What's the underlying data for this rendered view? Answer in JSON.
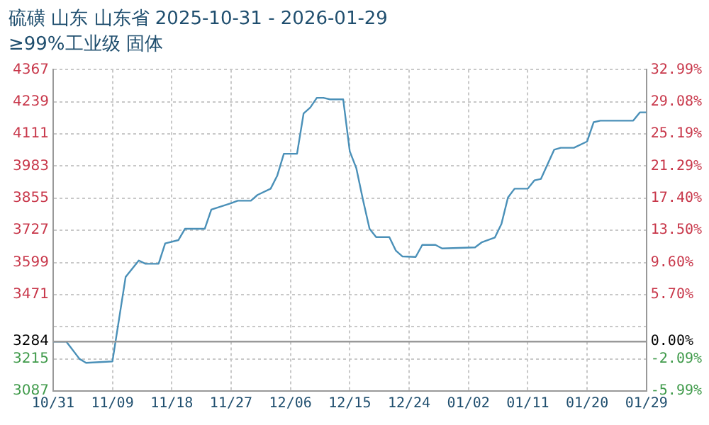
{
  "chart_data": {
    "type": "line",
    "title": "硫磺 山东 山东省 2025-10-31 - 2026-01-29",
    "subtitle": "≥99%工业级 固体",
    "x": [
      "2025-10-31",
      "2025-11-02",
      "2025-11-04",
      "2025-11-05",
      "2025-11-09",
      "2025-11-11",
      "2025-11-13",
      "2025-11-14",
      "2025-11-16",
      "2025-11-17",
      "2025-11-19",
      "2025-11-20",
      "2025-11-23",
      "2025-11-24",
      "2025-11-27",
      "2025-11-28",
      "2025-11-30",
      "2025-12-01",
      "2025-12-03",
      "2025-12-04",
      "2025-12-05",
      "2025-12-07",
      "2025-12-08",
      "2025-12-09",
      "2025-12-10",
      "2025-12-11",
      "2025-12-12",
      "2025-12-14",
      "2025-12-15",
      "2025-12-16",
      "2025-12-17",
      "2025-12-18",
      "2025-12-19",
      "2025-12-21",
      "2025-12-22",
      "2025-12-23",
      "2025-12-25",
      "2025-12-26",
      "2025-12-28",
      "2025-12-29",
      "2026-01-03",
      "2026-01-04",
      "2026-01-06",
      "2026-01-07",
      "2026-01-08",
      "2026-01-09",
      "2026-01-11",
      "2026-01-12",
      "2026-01-13",
      "2026-01-15",
      "2026-01-16",
      "2026-01-18",
      "2026-01-20",
      "2026-01-21",
      "2026-01-22",
      "2026-01-27",
      "2026-01-28",
      "2026-01-29"
    ],
    "series": [
      {
        "color": "#4a90b8",
        "values": [
          3284,
          3284,
          3215,
          3199,
          3205,
          3541,
          3607,
          3594,
          3594,
          3675,
          3688,
          3733,
          3733,
          3810,
          3835,
          3845,
          3845,
          3868,
          3893,
          3945,
          4032,
          4032,
          4193,
          4216,
          4255,
          4255,
          4249,
          4249,
          4042,
          3974,
          3849,
          3733,
          3700,
          3700,
          3646,
          3623,
          3621,
          3669,
          3669,
          3655,
          3659,
          3679,
          3698,
          3752,
          3858,
          3893,
          3893,
          3926,
          3932,
          4048,
          4056,
          4056,
          4081,
          4158,
          4164,
          4164,
          4197,
          4197
        ]
      }
    ],
    "xlim": [
      "2025-10-31",
      "2026-01-29"
    ],
    "xticks": [
      {
        "value": "2025-10-31",
        "label": "10/31"
      },
      {
        "value": "2025-11-09",
        "label": "11/09"
      },
      {
        "value": "2025-11-18",
        "label": "11/18"
      },
      {
        "value": "2025-11-27",
        "label": "11/27"
      },
      {
        "value": "2025-12-06",
        "label": "12/06"
      },
      {
        "value": "2025-12-15",
        "label": "12/15"
      },
      {
        "value": "2025-12-24",
        "label": "12/24"
      },
      {
        "value": "2026-01-02",
        "label": "01/02"
      },
      {
        "value": "2026-01-11",
        "label": "01/11"
      },
      {
        "value": "2026-01-20",
        "label": "01/20"
      },
      {
        "value": "2026-01-29",
        "label": "01/29"
      }
    ],
    "ylim": [
      3087,
      4367
    ],
    "yticks": [
      3087,
      3215,
      3284,
      {
        "value": 3343,
        "label": null
      },
      3471,
      3599,
      3727,
      3855,
      3983,
      4111,
      4239,
      4367
    ],
    "y2lim": [
      -5.99,
      32.99
    ],
    "y2ticks": [
      {
        "value": -5.99,
        "label": "-5.99%"
      },
      {
        "value": -2.09,
        "label": "-2.09%"
      },
      {
        "value": 0,
        "label": "0.00%"
      },
      {
        "value": 5.7,
        "label": "5.70%"
      },
      {
        "value": 9.6,
        "label": "9.60%"
      },
      {
        "value": 13.5,
        "label": "13.50%"
      },
      {
        "value": 17.4,
        "label": "17.40%"
      },
      {
        "value": 21.29,
        "label": "21.29%"
      },
      {
        "value": 25.19,
        "label": "25.19%"
      },
      {
        "value": 29.08,
        "label": "29.08%"
      },
      {
        "value": 32.99,
        "label": "32.99%"
      }
    ],
    "ref_lines": [
      {
        "axis": "y",
        "value": 3284,
        "color": "#999999",
        "line_style": "solid"
      }
    ],
    "grid": true,
    "legend": false,
    "marker": "none",
    "line_style": "solid"
  }
}
